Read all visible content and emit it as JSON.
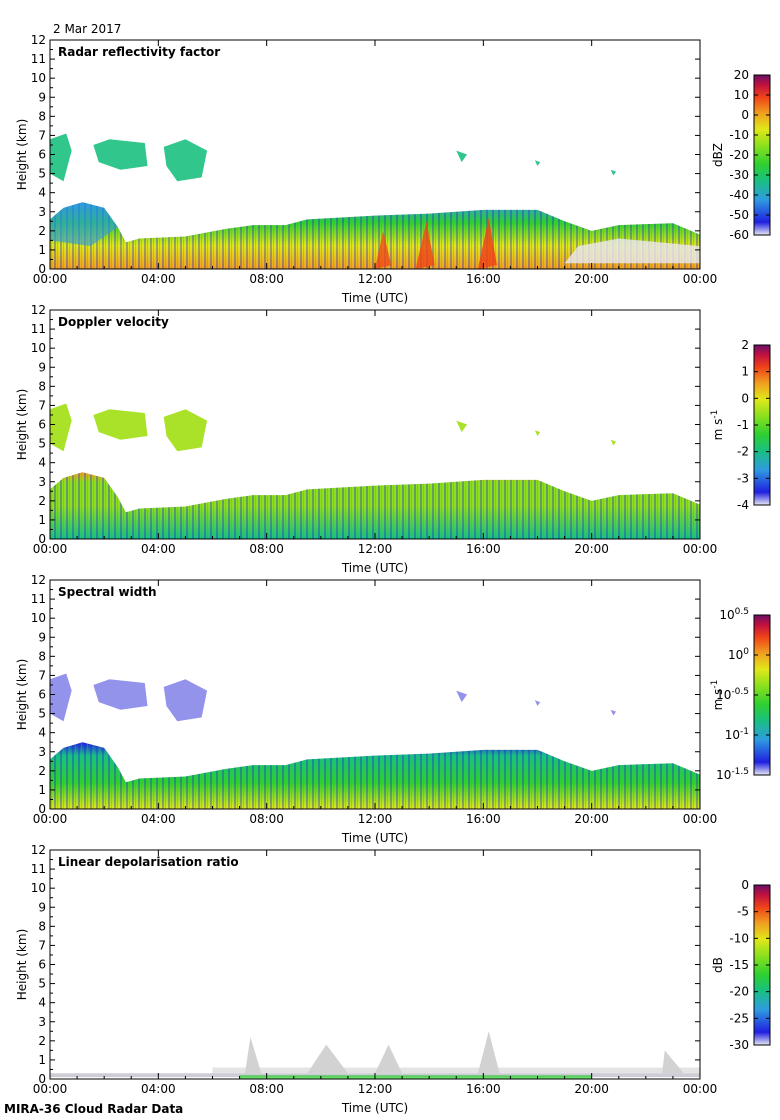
{
  "date": "2 Mar 2017",
  "footer": "MIRA-36 Cloud Radar Data",
  "colors": {
    "colormap": [
      "#e8e8f4",
      "#2020e0",
      "#2f9be0",
      "#19c080",
      "#2ed030",
      "#8ee01e",
      "#e0e81a",
      "#f0a020",
      "#f04418",
      "#c01040",
      "#6a1066"
    ],
    "ldr_gray": "#d2d2d2"
  },
  "chart_data": [
    {
      "type": "heatmap",
      "title": "Radar reflectivity factor",
      "xlabel": "Time (UTC)",
      "ylabel": "Height (km)",
      "xticks": [
        "00:00",
        "04:00",
        "08:00",
        "12:00",
        "16:00",
        "20:00",
        "00:00"
      ],
      "xlim": [
        0,
        24
      ],
      "ylim": [
        0,
        12
      ],
      "yticks": [
        "0",
        "1",
        "2",
        "3",
        "4",
        "5",
        "6",
        "7",
        "8",
        "9",
        "10",
        "11",
        "12"
      ],
      "colorbar": {
        "unit": "dBZ",
        "ticks": [
          "20",
          "10",
          "0",
          "-10",
          "-20",
          "-30",
          "-40",
          "-50",
          "-60"
        ],
        "range": [
          -60,
          20
        ]
      },
      "grid": false
    },
    {
      "type": "heatmap",
      "title": "Doppler velocity",
      "xlabel": "Time (UTC)",
      "ylabel": "Height (km)",
      "xticks": [
        "00:00",
        "04:00",
        "08:00",
        "12:00",
        "16:00",
        "20:00",
        "00:00"
      ],
      "xlim": [
        0,
        24
      ],
      "ylim": [
        0,
        12
      ],
      "yticks": [
        "0",
        "1",
        "2",
        "3",
        "4",
        "5",
        "6",
        "7",
        "8",
        "9",
        "10",
        "11",
        "12"
      ],
      "colorbar": {
        "unit": "m s-1",
        "ticks": [
          "2",
          "1",
          "0",
          "-1",
          "-2",
          "-3",
          "-4"
        ],
        "range": [
          -4,
          2
        ]
      },
      "grid": false
    },
    {
      "type": "heatmap",
      "title": "Spectral width",
      "xlabel": "Time (UTC)",
      "ylabel": "Height (km)",
      "xticks": [
        "00:00",
        "04:00",
        "08:00",
        "12:00",
        "16:00",
        "20:00",
        "00:00"
      ],
      "xlim": [
        0,
        24
      ],
      "ylim": [
        0,
        12
      ],
      "yticks": [
        "0",
        "1",
        "2",
        "3",
        "4",
        "5",
        "6",
        "7",
        "8",
        "9",
        "10",
        "11",
        "12"
      ],
      "colorbar": {
        "unit": "m s-1",
        "ticks": [
          "10^0.5",
          "10^0",
          "10^-0.5",
          "10^-1",
          "10^-1.5"
        ],
        "range": [
          -1.5,
          0.5
        ],
        "log": true
      },
      "grid": false
    },
    {
      "type": "heatmap",
      "title": "Linear depolarisation ratio",
      "xlabel": "Time (UTC)",
      "ylabel": "Height (km)",
      "xticks": [
        "00:00",
        "04:00",
        "08:00",
        "12:00",
        "16:00",
        "20:00",
        "00:00"
      ],
      "xlim": [
        0,
        24
      ],
      "ylim": [
        0,
        12
      ],
      "yticks": [
        "0",
        "1",
        "2",
        "3",
        "4",
        "5",
        "6",
        "7",
        "8",
        "9",
        "10",
        "11",
        "12"
      ],
      "colorbar": {
        "unit": "dB",
        "ticks": [
          "0",
          "-5",
          "-10",
          "-15",
          "-20",
          "-25",
          "-30"
        ],
        "range": [
          -30,
          0
        ]
      },
      "grid": false
    }
  ]
}
